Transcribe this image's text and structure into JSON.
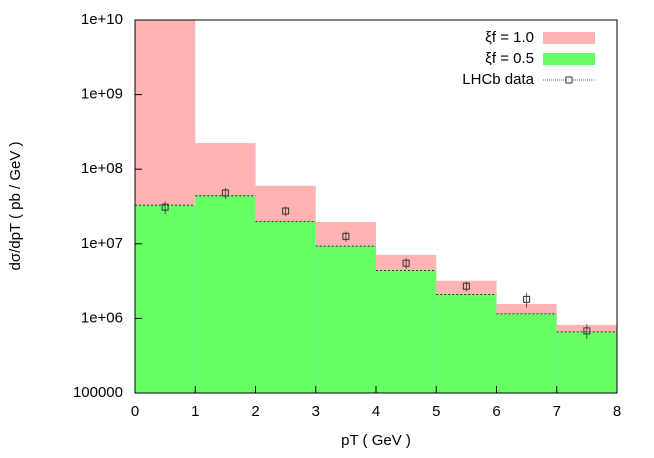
{
  "chart_data": {
    "type": "histogram",
    "y_label": "dσ/dpT ( pb / GeV )",
    "x_label": "pT ( GeV )",
    "bins": [
      0,
      1,
      2,
      3,
      4,
      5,
      6,
      7,
      8
    ],
    "series": [
      {
        "name": "ξf = 1.0",
        "color": "#ffb3b3",
        "style": "step",
        "values": [
          10000000000,
          224000000,
          60000000,
          19600000,
          7100000,
          3200000,
          1560000,
          820000
        ]
      },
      {
        "name": "ξf = 0.5",
        "color": "#66ff66",
        "style": "step",
        "values": [
          33000000,
          44000000,
          20000000,
          9300000,
          4400000,
          2100000,
          1150000,
          660000
        ]
      },
      {
        "name": "LHCb data",
        "color": "#333333",
        "style": "points",
        "x": [
          0.5,
          1.5,
          2.5,
          3.5,
          4.5,
          5.5,
          6.5,
          7.5
        ],
        "values": [
          31000000,
          48000000,
          27500000,
          12600000,
          5500000,
          2700000,
          1800000,
          680000
        ],
        "errors": [
          6000000,
          8000000,
          4000000,
          2000000,
          900000,
          400000,
          400000,
          150000
        ]
      }
    ],
    "xlim": [
      0,
      8
    ],
    "xticks": [
      0,
      1,
      2,
      3,
      4,
      5,
      6,
      7,
      8
    ],
    "ylim": [
      100000,
      10000000000
    ],
    "yticks": [
      100000,
      {
        "value": 1000000,
        "label": "1e+06"
      },
      {
        "value": 10000000,
        "label": "1e+07"
      },
      {
        "value": 100000000,
        "label": "1e+08"
      },
      {
        "value": 1000000000,
        "label": "1e+09"
      },
      {
        "value": 10000000000,
        "label": "1e+10"
      }
    ],
    "log_y": true,
    "legend": "top-right"
  }
}
